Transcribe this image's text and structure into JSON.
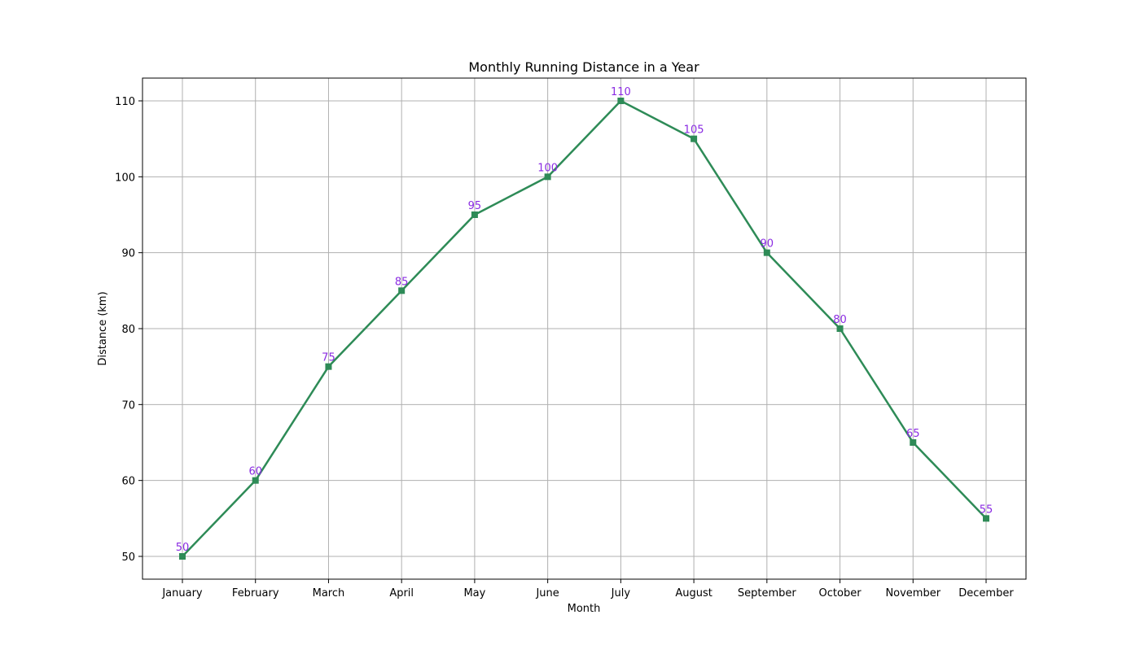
{
  "chart_data": {
    "type": "line",
    "title": "Monthly Running Distance in a Year",
    "xlabel": "Month",
    "ylabel": "Distance (km)",
    "categories": [
      "January",
      "February",
      "March",
      "April",
      "May",
      "June",
      "July",
      "August",
      "September",
      "October",
      "November",
      "December"
    ],
    "series": [
      {
        "values": [
          50,
          60,
          75,
          85,
          95,
          100,
          110,
          105,
          90,
          80,
          65,
          55
        ],
        "color": "#2e8b57",
        "marker": "square"
      }
    ],
    "data_label_color": "#8a2be2",
    "ylim": [
      47,
      113
    ],
    "yticks": [
      50,
      60,
      70,
      80,
      90,
      100,
      110
    ],
    "grid": true,
    "grid_color": "#b0b0b0"
  }
}
